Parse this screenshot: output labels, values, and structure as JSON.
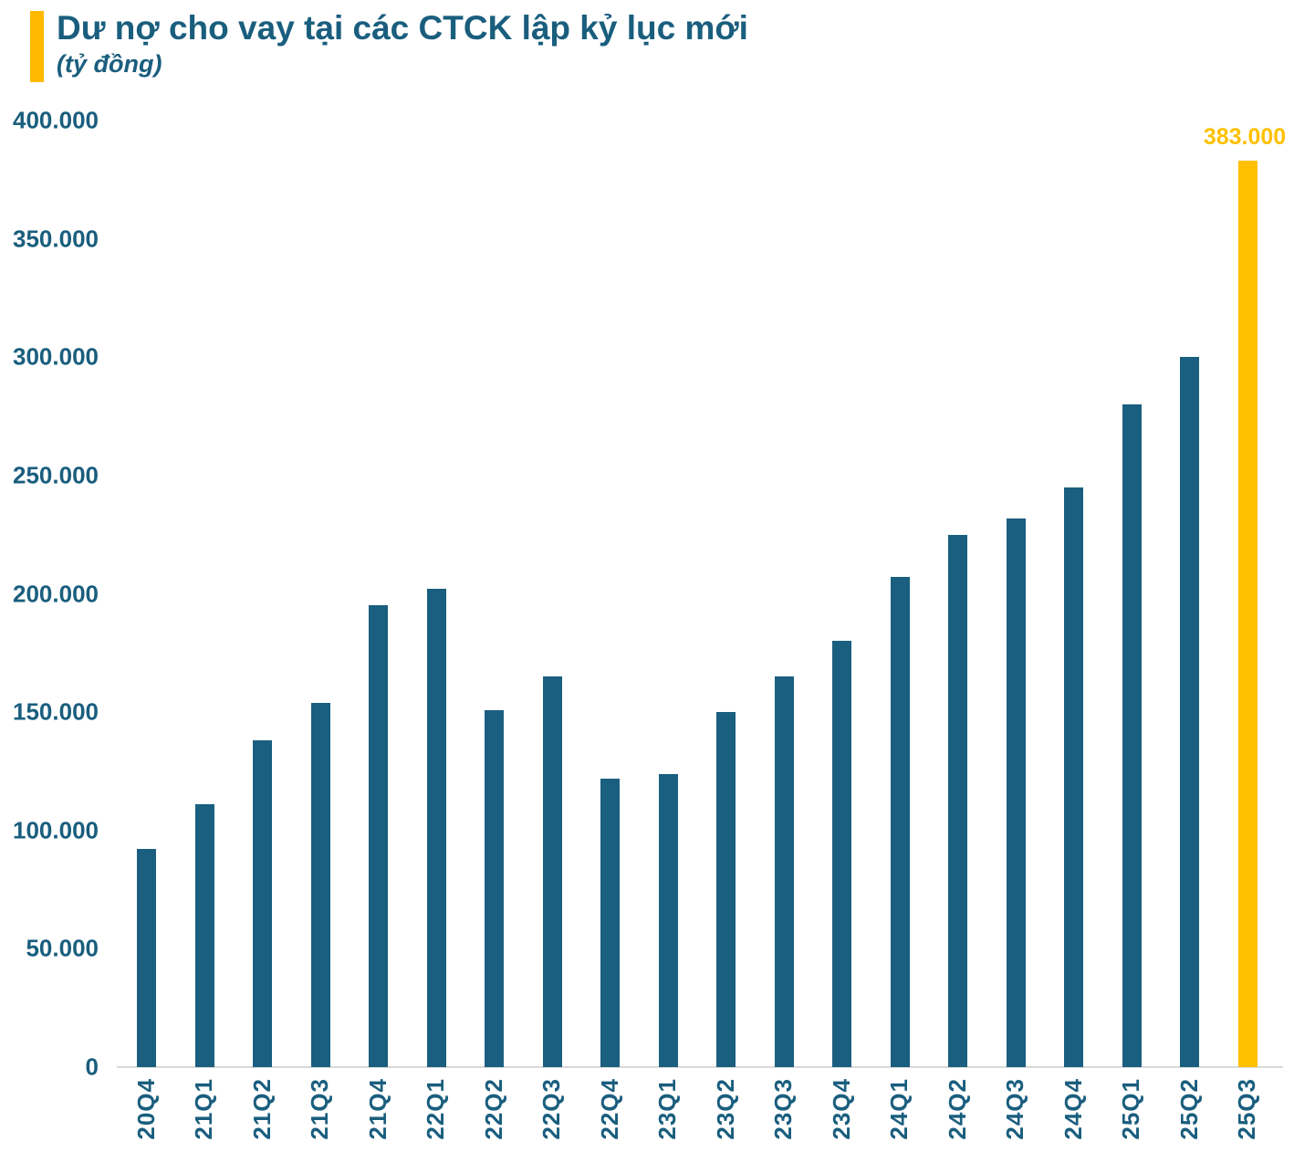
{
  "header": {
    "title": "Dư nợ cho vay tại các CTCK lập kỷ lục mới",
    "subtitle": "(tỷ đồng)"
  },
  "colors": {
    "bar": "#1A5F7F",
    "highlight": "#FFC000",
    "accent_bar": "#FFB900",
    "text": "#1A5E7E",
    "baseline": "#D9D9D9",
    "data_label": "#FFC000"
  },
  "chart_data": {
    "type": "bar",
    "title": "Dư nợ cho vay tại các CTCK lập kỷ lục mới",
    "unit_label": "(tỷ đồng)",
    "categories": [
      "20Q4",
      "21Q1",
      "21Q2",
      "21Q3",
      "21Q4",
      "22Q1",
      "22Q2",
      "22Q3",
      "22Q4",
      "23Q1",
      "23Q2",
      "23Q3",
      "23Q4",
      "24Q1",
      "24Q2",
      "24Q3",
      "24Q4",
      "25Q1",
      "25Q2",
      "25Q3"
    ],
    "values": [
      92000,
      111000,
      138000,
      154000,
      195000,
      202000,
      151000,
      165000,
      122000,
      124000,
      150000,
      165000,
      180000,
      207000,
      225000,
      232000,
      245000,
      280000,
      300000,
      383000
    ],
    "highlight_index": 19,
    "data_label": {
      "index": 19,
      "text": "383.000"
    },
    "ylim": [
      0,
      400000
    ],
    "ytick_step": 50000,
    "ytick_labels": [
      "0",
      "50.000",
      "100.000",
      "150.000",
      "200.000",
      "250.000",
      "300.000",
      "350.000",
      "400.000"
    ],
    "grid": false,
    "legend": false,
    "x_labels_rotated": true
  }
}
